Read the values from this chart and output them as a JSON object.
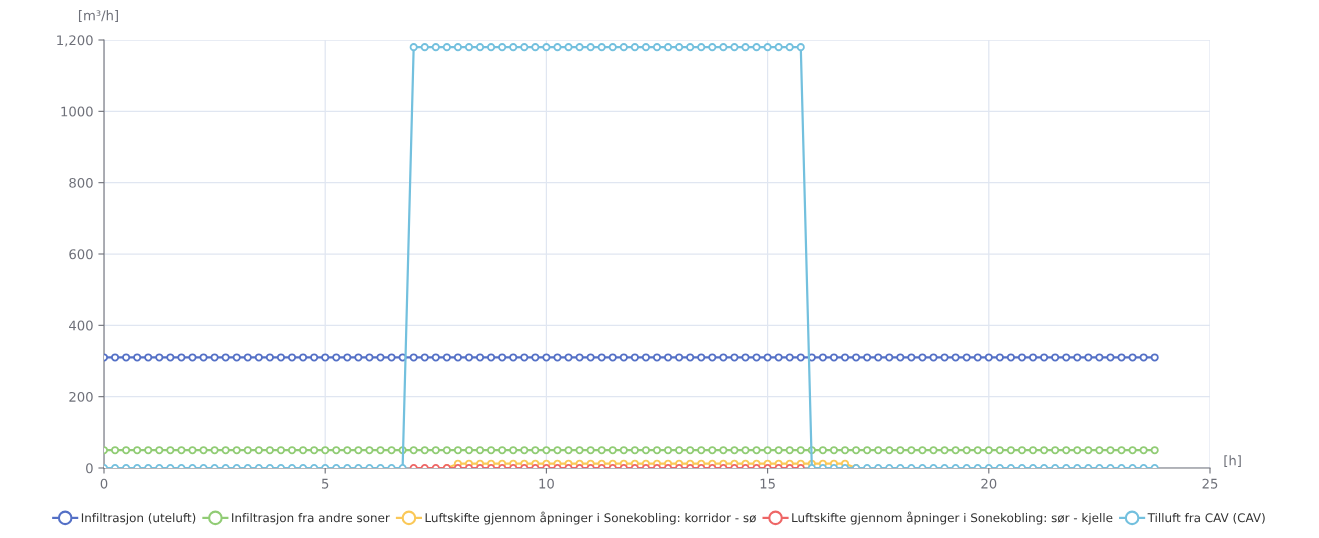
{
  "chart_data": {
    "type": "line",
    "ylabel": "[m³/h]",
    "xlabel": "[h]",
    "x": [
      0,
      0.25,
      0.5,
      0.75,
      1,
      1.25,
      1.5,
      1.75,
      2,
      2.25,
      2.5,
      2.75,
      3,
      3.25,
      3.5,
      3.75,
      4,
      4.25,
      4.5,
      4.75,
      5,
      5.25,
      5.5,
      5.75,
      6,
      6.25,
      6.5,
      6.75,
      7,
      7.25,
      7.5,
      7.75,
      8,
      8.25,
      8.5,
      8.75,
      9,
      9.25,
      9.5,
      9.75,
      10,
      10.25,
      10.5,
      10.75,
      11,
      11.25,
      11.5,
      11.75,
      12,
      12.25,
      12.5,
      12.75,
      13,
      13.25,
      13.5,
      13.75,
      14,
      14.25,
      14.5,
      14.75,
      15,
      15.25,
      15.5,
      15.75,
      16,
      16.25,
      16.5,
      16.75,
      17,
      17.25,
      17.5,
      17.75,
      18,
      18.25,
      18.5,
      18.75,
      19,
      19.25,
      19.5,
      19.75,
      20,
      20.25,
      20.5,
      20.75,
      21,
      21.25,
      21.5,
      21.75,
      22,
      22.25,
      22.5,
      22.75,
      23,
      23.25,
      23.5,
      23.75
    ],
    "xlim": [
      0,
      25
    ],
    "xticks": [
      0,
      5,
      10,
      15,
      20,
      25
    ],
    "ylim": [
      0,
      1200
    ],
    "yticks": [
      0,
      200,
      400,
      600,
      800,
      1000,
      {
        "value": 1200,
        "label": "1,200"
      }
    ],
    "grid": true,
    "legend": "bottom",
    "marker": "circle",
    "line_style": "solid",
    "series": [
      {
        "name": "Infiltrasjon (uteluft)",
        "color": "#5470c6",
        "values": [
          310,
          310,
          310,
          310,
          310,
          310,
          310,
          310,
          310,
          310,
          310,
          310,
          310,
          310,
          310,
          310,
          310,
          310,
          310,
          310,
          310,
          310,
          310,
          310,
          310,
          310,
          310,
          310,
          310,
          310,
          310,
          310,
          310,
          310,
          310,
          310,
          310,
          310,
          310,
          310,
          310,
          310,
          310,
          310,
          310,
          310,
          310,
          310,
          310,
          310,
          310,
          310,
          310,
          310,
          310,
          310,
          310,
          310,
          310,
          310,
          310,
          310,
          310,
          310,
          310,
          310,
          310,
          310,
          310,
          310,
          310,
          310,
          310,
          310,
          310,
          310,
          310,
          310,
          310,
          310,
          310,
          310,
          310,
          310,
          310,
          310,
          310,
          310,
          310,
          310,
          310,
          310,
          310,
          310,
          310,
          310
        ]
      },
      {
        "name": "Infiltrasjon fra andre soner",
        "color": "#91cc75",
        "values": [
          50,
          50,
          50,
          50,
          50,
          50,
          50,
          50,
          50,
          50,
          50,
          50,
          50,
          50,
          50,
          50,
          50,
          50,
          50,
          50,
          50,
          50,
          50,
          50,
          50,
          50,
          50,
          50,
          50,
          50,
          50,
          50,
          50,
          50,
          50,
          50,
          50,
          50,
          50,
          50,
          50,
          50,
          50,
          50,
          50,
          50,
          50,
          50,
          50,
          50,
          50,
          50,
          50,
          50,
          50,
          50,
          50,
          50,
          50,
          50,
          50,
          50,
          50,
          50,
          50,
          50,
          50,
          50,
          50,
          50,
          50,
          50,
          50,
          50,
          50,
          50,
          50,
          50,
          50,
          50,
          50,
          50,
          50,
          50,
          50,
          50,
          50,
          50,
          50,
          50,
          50,
          50,
          50,
          50,
          50,
          50
        ]
      },
      {
        "name": "Luftskifte gjennom åpninger i Sonekobling: korridor - sø",
        "color": "#fac858",
        "values": [
          null,
          null,
          null,
          null,
          null,
          null,
          null,
          null,
          null,
          null,
          null,
          null,
          null,
          null,
          null,
          null,
          null,
          null,
          null,
          null,
          null,
          null,
          null,
          null,
          null,
          null,
          null,
          null,
          null,
          null,
          null,
          0,
          12,
          12,
          12,
          12,
          12,
          12,
          12,
          12,
          12,
          12,
          12,
          12,
          12,
          12,
          12,
          12,
          12,
          12,
          12,
          12,
          12,
          12,
          12,
          12,
          12,
          12,
          12,
          12,
          12,
          12,
          12,
          12,
          12,
          12,
          12,
          12,
          0,
          null,
          null,
          null,
          null,
          null,
          null,
          null,
          null,
          null,
          null,
          null,
          null,
          null,
          null,
          null,
          null,
          null,
          null,
          null,
          null,
          null,
          null,
          null,
          null,
          null,
          null,
          null
        ]
      },
      {
        "name": "Luftskifte gjennom åpninger i Sonekobling: sør - kjelle",
        "color": "#ee6666",
        "values": [
          null,
          null,
          null,
          null,
          null,
          null,
          null,
          null,
          null,
          null,
          null,
          null,
          null,
          null,
          null,
          null,
          null,
          null,
          null,
          null,
          null,
          null,
          null,
          null,
          null,
          null,
          null,
          null,
          0,
          0,
          0,
          0,
          0,
          0,
          0,
          0,
          0,
          0,
          0,
          0,
          0,
          0,
          0,
          0,
          0,
          0,
          0,
          0,
          0,
          0,
          0,
          0,
          0,
          0,
          0,
          0,
          0,
          0,
          0,
          0,
          0,
          0,
          0,
          0,
          null,
          null,
          null,
          null,
          null,
          null,
          null,
          null,
          null,
          null,
          null,
          null,
          null,
          null,
          null,
          null,
          null,
          null,
          null,
          null,
          null,
          null,
          null,
          null,
          null,
          null,
          null,
          null,
          null,
          null,
          null,
          null
        ]
      },
      {
        "name": "Tilluft fra CAV (CAV)",
        "color": "#73c0de",
        "values": [
          0,
          0,
          0,
          0,
          0,
          0,
          0,
          0,
          0,
          0,
          0,
          0,
          0,
          0,
          0,
          0,
          0,
          0,
          0,
          0,
          0,
          0,
          0,
          0,
          0,
          0,
          0,
          0,
          1180,
          1180,
          1180,
          1180,
          1180,
          1180,
          1180,
          1180,
          1180,
          1180,
          1180,
          1180,
          1180,
          1180,
          1180,
          1180,
          1180,
          1180,
          1180,
          1180,
          1180,
          1180,
          1180,
          1180,
          1180,
          1180,
          1180,
          1180,
          1180,
          1180,
          1180,
          1180,
          1180,
          1180,
          1180,
          1180,
          0,
          0,
          0,
          0,
          0,
          0,
          0,
          0,
          0,
          0,
          0,
          0,
          0,
          0,
          0,
          0,
          0,
          0,
          0,
          0,
          0,
          0,
          0,
          0,
          0,
          0,
          0,
          0,
          0,
          0,
          0,
          0
        ]
      }
    ]
  }
}
